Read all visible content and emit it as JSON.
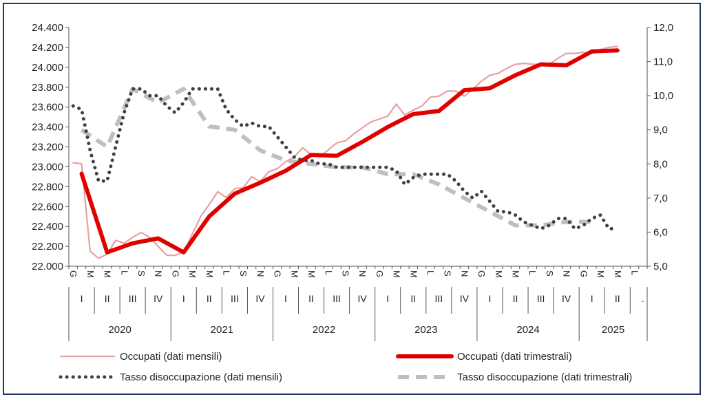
{
  "chart_data": {
    "type": "line",
    "y_left": {
      "min": 22000,
      "max": 24400,
      "ticks": [
        "22.000",
        "22.200",
        "22.400",
        "22.600",
        "22.800",
        "23.000",
        "23.200",
        "23.400",
        "23.600",
        "23.800",
        "24.000",
        "24.200",
        "24.400"
      ]
    },
    "y_right": {
      "min": 5.0,
      "max": 12.0,
      "ticks": [
        "5,0",
        "6,0",
        "7,0",
        "8,0",
        "9,0",
        "10,0",
        "11,0",
        "12,0"
      ]
    },
    "x_axis": {
      "month_labels": [
        "G",
        "M",
        "M",
        "L",
        "S",
        "N",
        "G",
        "M",
        "M",
        "L",
        "S",
        "N",
        "G",
        "M",
        "M",
        "L",
        "S",
        "N",
        "G",
        "M",
        "M",
        "L",
        "S",
        "N",
        "G",
        "M",
        "M",
        "L",
        "S",
        "N",
        "G",
        "M",
        "M",
        "L"
      ],
      "quarters": [
        {
          "label": "I"
        },
        {
          "label": "II"
        },
        {
          "label": "III"
        },
        {
          "label": "IV"
        },
        {
          "label": "I"
        },
        {
          "label": "II"
        },
        {
          "label": "III"
        },
        {
          "label": "IV"
        },
        {
          "label": "I"
        },
        {
          "label": "II"
        },
        {
          "label": "III"
        },
        {
          "label": "IV"
        },
        {
          "label": "I"
        },
        {
          "label": "II"
        },
        {
          "label": "III"
        },
        {
          "label": "IV"
        },
        {
          "label": "I"
        },
        {
          "label": "II"
        },
        {
          "label": "III"
        },
        {
          "label": "IV"
        },
        {
          "label": "I"
        },
        {
          "label": "II"
        },
        {
          "label": "."
        }
      ],
      "years": [
        "2020",
        "2021",
        "2022",
        "2023",
        "2024",
        "2025"
      ]
    },
    "series": [
      {
        "name": "Occupati (dati mensili)",
        "axis": "left",
        "color": "#e8a0a0",
        "values": [
          23040,
          23030,
          22150,
          22080,
          22120,
          22260,
          22230,
          22290,
          22340,
          22290,
          22200,
          22110,
          22110,
          22140,
          22320,
          22500,
          22620,
          22750,
          22690,
          22780,
          22790,
          22900,
          22850,
          22950,
          22980,
          23050,
          23100,
          23190,
          23120,
          23100,
          23170,
          23240,
          23260,
          23330,
          23390,
          23450,
          23480,
          23510,
          23630,
          23520,
          23570,
          23610,
          23700,
          23710,
          23760,
          23760,
          23710,
          23780,
          23860,
          23920,
          23940,
          23990,
          24030,
          24040,
          24030,
          24030,
          24030,
          24090,
          24140,
          24140,
          24150,
          24140,
          24180,
          24200,
          24210
        ]
      },
      {
        "name": "Occupati (dati trimestrali)",
        "axis": "left",
        "color": "#e00000",
        "quarter_values": [
          22930,
          22140,
          22230,
          22280,
          22140,
          22500,
          22730,
          22840,
          22960,
          23120,
          23110,
          23250,
          23400,
          23530,
          23560,
          23770,
          23790,
          23920,
          24030,
          24020,
          24160,
          24170
        ]
      },
      {
        "name": "Tasso disoccupazione (dati mensili)",
        "axis": "right",
        "color": "#404040",
        "values": [
          9.7,
          9.6,
          8.4,
          7.5,
          7.5,
          8.5,
          9.5,
          10.2,
          10.2,
          10.0,
          10.0,
          9.7,
          9.5,
          9.8,
          10.2,
          10.2,
          10.2,
          10.2,
          9.6,
          9.3,
          9.1,
          9.2,
          9.1,
          9.1,
          8.8,
          8.5,
          8.2,
          8.1,
          8.1,
          8.0,
          8.0,
          7.9,
          7.9,
          7.9,
          7.9,
          7.9,
          7.9,
          7.9,
          7.8,
          7.4,
          7.6,
          7.7,
          7.7,
          7.7,
          7.7,
          7.5,
          7.2,
          7.0,
          7.2,
          6.9,
          6.6,
          6.6,
          6.5,
          6.3,
          6.2,
          6.1,
          6.2,
          6.4,
          6.4,
          6.1,
          6.2,
          6.4,
          6.5,
          6.1,
          6.1
        ]
      },
      {
        "name": "Tasso disoccupazione (dati trimestrali)",
        "axis": "right",
        "color": "#bfbfbf",
        "quarter_values": [
          9.0,
          8.5,
          10.2,
          9.8,
          10.2,
          9.1,
          9.0,
          8.4,
          8.1,
          8.0,
          7.9,
          7.9,
          7.7,
          7.7,
          7.4,
          7.0,
          6.6,
          6.2,
          6.2,
          6.3,
          6.3,
          null
        ]
      }
    ]
  }
}
